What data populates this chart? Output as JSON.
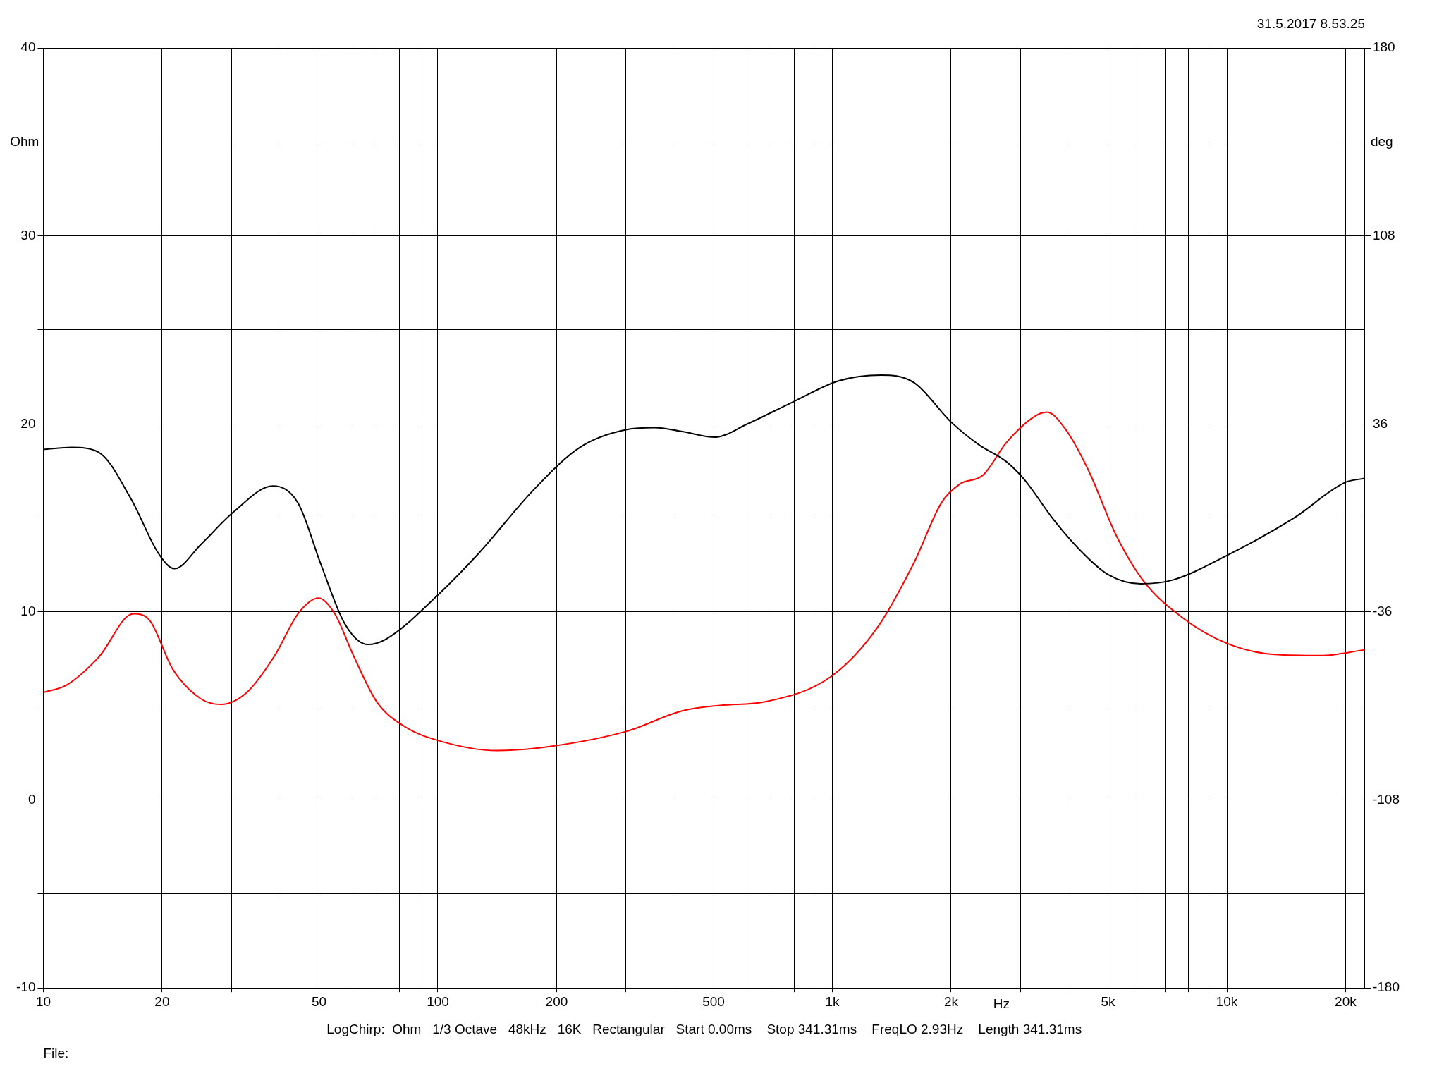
{
  "chart_data": {
    "type": "line",
    "xlim": [
      10,
      22400
    ],
    "xticks": [
      10,
      20,
      {
        "value": 30,
        "label": null
      },
      {
        "value": 40,
        "label": null
      },
      50,
      {
        "value": 60,
        "label": null
      },
      {
        "value": 70,
        "label": null
      },
      {
        "value": 80,
        "label": null
      },
      {
        "value": 90,
        "label": null
      },
      100,
      200,
      {
        "value": 300,
        "label": null
      },
      {
        "value": 400,
        "label": null
      },
      500,
      {
        "value": 600,
        "label": null
      },
      {
        "value": 700,
        "label": null
      },
      {
        "value": 800,
        "label": null
      },
      {
        "value": 900,
        "label": null
      },
      {
        "value": 1000,
        "label": "1k"
      },
      {
        "value": 2000,
        "label": "2k"
      },
      {
        "value": 3000,
        "label": null
      },
      {
        "value": 4000,
        "label": null
      },
      {
        "value": 5000,
        "label": "5k"
      },
      {
        "value": 6000,
        "label": null
      },
      {
        "value": 7000,
        "label": null
      },
      {
        "value": 8000,
        "label": null
      },
      {
        "value": 9000,
        "label": null
      },
      {
        "value": 10000,
        "label": "10k"
      },
      {
        "value": 20000,
        "label": "20k"
      }
    ],
    "xlabel": "Hz",
    "ylabel": "Ohm",
    "y2label": "deg",
    "ylim": [
      -10,
      40
    ],
    "yticks": [
      -10,
      {
        "value": -5,
        "label": null
      },
      0,
      {
        "value": 5,
        "label": null
      },
      10,
      {
        "value": 15,
        "label": null
      },
      20,
      {
        "value": 25,
        "label": null
      },
      30,
      {
        "value": 35,
        "label": null
      },
      40
    ],
    "y2lim": [
      -180,
      180
    ],
    "y2ticks": [
      -180,
      -108,
      -36,
      36,
      108,
      180
    ],
    "log": "x",
    "grid": true,
    "legend": false,
    "marker": "none",
    "line_style": "solid",
    "series": [
      {
        "color": "#000000",
        "x": [
          10,
          11.8,
          13.8,
          16.7,
          19.6,
          21.5,
          25.1,
          30.3,
          38.2,
          44.2,
          50.6,
          58,
          66.4,
          74,
          100,
          126.7,
          175,
          229,
          301,
          354,
          416,
          504,
          609,
          800,
          1040,
          1330,
          1610,
          2000,
          2350,
          2760,
          3080,
          3610,
          4240,
          4990,
          6050,
          7290,
          10000,
          14800,
          20000,
          22400
        ],
        "values": [
          18.65,
          18.75,
          18.5,
          16,
          13.1,
          12.3,
          13.6,
          15.3,
          16.7,
          15.8,
          12.5,
          9.4,
          8.27,
          8.56,
          10.9,
          13.1,
          16.5,
          18.75,
          19.7,
          19.8,
          19.6,
          19.3,
          20,
          21.2,
          22.3,
          22.6,
          22.2,
          20.1,
          18.9,
          18,
          17,
          15,
          13.3,
          12,
          11.5,
          11.7,
          13,
          15,
          16.9,
          17.1
        ]
      },
      {
        "color": "#ff0000",
        "axis": "y2",
        "x": [
          10,
          11.45,
          13.8,
          16.9,
          18.6,
          21.3,
          25.1,
          28.2,
          32.8,
          38.6,
          44.2,
          49.8,
          54.8,
          61.1,
          70,
          82.4,
          100,
          141,
          195,
          301,
          416,
          519,
          676,
          991,
          1300,
          1610,
          1890,
          2100,
          2410,
          2760,
          3250,
          3500,
          3890,
          4460,
          5240,
          6160,
          7770,
          10000,
          13200,
          17300,
          22400
        ],
        "values": [
          -66.8,
          -64,
          -53.4,
          -36.7,
          -39.2,
          -58,
          -69.3,
          -71.4,
          -66.8,
          -52.7,
          -36.7,
          -30.7,
          -36.7,
          -52.7,
          -70.4,
          -79.9,
          -85.2,
          -89.1,
          -87.4,
          -81.7,
          -73.9,
          -71.8,
          -70.4,
          -60.8,
          -42,
          -17.2,
          5.8,
          12.9,
          16.4,
          28.8,
          38.8,
          40.5,
          34.2,
          18.2,
          -6.6,
          -24.3,
          -38.5,
          -48,
          -52.3,
          -52.7,
          -50.5
        ]
      }
    ],
    "annotations": [
      "31.5.2017 8.53.25",
      "LogChirp:  Ohm   1/3 Octave   48kHz   16K   Rectangular   Start 0.00ms    Stop 341.31ms    FreqLO 2.93Hz    Length 341.31ms",
      "File:"
    ]
  }
}
